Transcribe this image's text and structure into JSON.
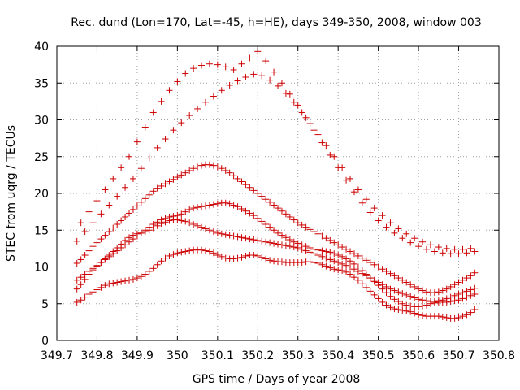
{
  "chart_data": {
    "type": "scatter",
    "title": "Rec. dund (Lon=170, Lat=-45, h=HE), days 349-350, 2008, window 003",
    "xlabel": "GPS time / Days of year 2008",
    "ylabel": "STEC from uqrg / TECUs",
    "xlim": [
      349.7,
      350.8
    ],
    "ylim": [
      0,
      40
    ],
    "xticks": [
      "349.7",
      "349.8",
      "349.9",
      "350",
      "350.1",
      "350.2",
      "350.3",
      "350.4",
      "350.5",
      "350.6",
      "350.7",
      "350.8"
    ],
    "yticks": [
      "0",
      "5",
      "10",
      "15",
      "20",
      "25",
      "30",
      "35",
      "40"
    ],
    "grid": true,
    "marker": "+",
    "colors": {
      "points": "#cc0000"
    },
    "series": [
      {
        "x": [
          349.75,
          349.76,
          349.77,
          349.78,
          349.79,
          349.8,
          349.81,
          349.82,
          349.83,
          349.84,
          349.85,
          349.86,
          349.87,
          349.88,
          349.89,
          349.9,
          349.91,
          349.92,
          349.93,
          349.94,
          349.95,
          349.96,
          349.97,
          349.98,
          349.99,
          350.0,
          350.01,
          350.02,
          350.03,
          350.04,
          350.05,
          350.06,
          350.07,
          350.08,
          350.09,
          350.1,
          350.11,
          350.12,
          350.13,
          350.14,
          350.15,
          350.16,
          350.17,
          350.18,
          350.19,
          350.2,
          350.21,
          350.22,
          350.23,
          350.24,
          350.25,
          350.26,
          350.27,
          350.28,
          350.29,
          350.3,
          350.31,
          350.32,
          350.33,
          350.34,
          350.35,
          350.36,
          350.37,
          350.38,
          350.39,
          350.4,
          350.41,
          350.42,
          350.43,
          350.44,
          350.45,
          350.46,
          350.47,
          350.48,
          350.49,
          350.5,
          350.51,
          350.52,
          350.53,
          350.54,
          350.55,
          350.56,
          350.57,
          350.58,
          350.59,
          350.6,
          350.61,
          350.62,
          350.63,
          350.64,
          350.65,
          350.66,
          350.67,
          350.68,
          350.69,
          350.7,
          350.71,
          350.72,
          350.73,
          350.74
        ],
        "y": [
          5.2,
          5.5,
          5.9,
          6.3,
          6.6,
          6.9,
          7.2,
          7.5,
          7.7,
          7.8,
          7.9,
          8.0,
          8.1,
          8.2,
          8.3,
          8.5,
          8.7,
          9.0,
          9.4,
          9.8,
          10.3,
          10.8,
          11.2,
          11.5,
          11.7,
          11.9,
          12.0,
          12.1,
          12.2,
          12.3,
          12.3,
          12.3,
          12.2,
          12.1,
          11.9,
          11.6,
          11.4,
          11.2,
          11.1,
          11.1,
          11.2,
          11.3,
          11.5,
          11.6,
          11.6,
          11.5,
          11.3,
          11.1,
          10.9,
          10.8,
          10.7,
          10.7,
          10.6,
          10.6,
          10.6,
          10.6,
          10.6,
          10.7,
          10.7,
          10.6,
          10.5,
          10.3,
          10.1,
          9.9,
          9.7,
          9.6,
          9.5,
          9.3,
          9.0,
          8.6,
          8.2,
          7.7,
          7.2,
          6.7,
          6.2,
          5.7,
          5.2,
          4.8,
          4.5,
          4.3,
          4.2,
          4.1,
          4.0,
          3.9,
          3.7,
          3.5,
          3.4,
          3.3,
          3.3,
          3.3,
          3.3,
          3.2,
          3.1,
          3.0,
          3.0,
          3.1,
          3.3,
          3.5,
          3.8,
          4.2
        ]
      },
      {
        "x": [
          349.75,
          349.76,
          349.77,
          349.78,
          349.79,
          349.8,
          349.81,
          349.82,
          349.83,
          349.84,
          349.85,
          349.86,
          349.87,
          349.88,
          349.89,
          349.9,
          349.91,
          349.92,
          349.93,
          349.94,
          349.95,
          349.96,
          349.97,
          349.98,
          349.99,
          350.0,
          350.01,
          350.02,
          350.03,
          350.04,
          350.05,
          350.06,
          350.07,
          350.08,
          350.09,
          350.1,
          350.11,
          350.12,
          350.13,
          350.14,
          350.15,
          350.16,
          350.17,
          350.18,
          350.19,
          350.2,
          350.21,
          350.22,
          350.23,
          350.24,
          350.25,
          350.26,
          350.27,
          350.28,
          350.29,
          350.3,
          350.31,
          350.32,
          350.33,
          350.34,
          350.35,
          350.36,
          350.37,
          350.38,
          350.39,
          350.4,
          350.41,
          350.42,
          350.43,
          350.44,
          350.45,
          350.46,
          350.47,
          350.48,
          350.49,
          350.5,
          350.51,
          350.52,
          350.53,
          350.54,
          350.55,
          350.56,
          350.57,
          350.58,
          350.59,
          350.6,
          350.61,
          350.62,
          350.63,
          350.64,
          350.65,
          350.66,
          350.67,
          350.68,
          350.69,
          350.7,
          350.71,
          350.72,
          350.73,
          350.74
        ],
        "y": [
          8.2,
          8.6,
          9.0,
          9.4,
          9.8,
          10.2,
          10.6,
          11.0,
          11.4,
          11.8,
          12.2,
          12.6,
          13.0,
          13.4,
          13.8,
          14.2,
          14.6,
          15.0,
          15.4,
          15.8,
          16.1,
          16.4,
          16.6,
          16.8,
          16.9,
          17.0,
          17.2,
          17.5,
          17.8,
          18.0,
          18.1,
          18.2,
          18.3,
          18.4,
          18.5,
          18.6,
          18.7,
          18.7,
          18.6,
          18.4,
          18.2,
          17.9,
          17.6,
          17.3,
          17.0,
          16.6,
          16.2,
          15.8,
          15.4,
          15.0,
          14.6,
          14.3,
          14.0,
          13.7,
          13.4,
          13.2,
          13.0,
          12.8,
          12.6,
          12.4,
          12.3,
          12.2,
          12.1,
          12.0,
          11.8,
          11.6,
          11.4,
          11.1,
          10.8,
          10.4,
          10.0,
          9.5,
          9.0,
          8.5,
          8.0,
          7.5,
          7.0,
          6.5,
          6.0,
          5.6,
          5.3,
          5.0,
          4.8,
          4.7,
          4.6,
          4.6,
          4.7,
          4.8,
          5.0,
          5.1,
          5.2,
          5.2,
          5.2,
          5.3,
          5.4,
          5.5,
          5.7,
          5.9,
          6.1,
          6.3
        ]
      },
      {
        "x": [
          349.75,
          349.76,
          349.77,
          349.78,
          349.79,
          349.8,
          349.81,
          349.82,
          349.83,
          349.84,
          349.85,
          349.86,
          349.87,
          349.88,
          349.89,
          349.9,
          349.91,
          349.92,
          349.93,
          349.94,
          349.95,
          349.96,
          349.97,
          349.98,
          349.99,
          350.0,
          350.01,
          350.02,
          350.03,
          350.04,
          350.05,
          350.06,
          350.07,
          350.08,
          350.09,
          350.1,
          350.11,
          350.12,
          350.13,
          350.14,
          350.15,
          350.16,
          350.17,
          350.18,
          350.19,
          350.2,
          350.21,
          350.22,
          350.23,
          350.24,
          350.25,
          350.26,
          350.27,
          350.28,
          350.29,
          350.3,
          350.31,
          350.32,
          350.33,
          350.34,
          350.35,
          350.36,
          350.37,
          350.38,
          350.39,
          350.4,
          350.41,
          350.42,
          350.43,
          350.44,
          350.45,
          350.46,
          350.47,
          350.48,
          350.49,
          350.5,
          350.51,
          350.52,
          350.53,
          350.54,
          350.55,
          350.56,
          350.57,
          350.58,
          350.59,
          350.6,
          350.61,
          350.62,
          350.63,
          350.64,
          350.65,
          350.66,
          350.67,
          350.68,
          350.69,
          350.7,
          350.71,
          350.72,
          350.73,
          350.74
        ],
        "y": [
          10.5,
          11.0,
          11.6,
          12.2,
          12.8,
          13.3,
          13.8,
          14.3,
          14.8,
          15.3,
          15.8,
          16.3,
          16.8,
          17.3,
          17.8,
          18.3,
          18.8,
          19.3,
          19.8,
          20.3,
          20.7,
          21.0,
          21.3,
          21.6,
          21.9,
          22.2,
          22.5,
          22.8,
          23.1,
          23.4,
          23.6,
          23.8,
          23.9,
          23.9,
          23.8,
          23.6,
          23.4,
          23.1,
          22.8,
          22.4,
          22.0,
          21.6,
          21.2,
          20.8,
          20.4,
          20.0,
          19.6,
          19.2,
          18.8,
          18.4,
          18.0,
          17.6,
          17.2,
          16.8,
          16.4,
          16.0,
          15.7,
          15.4,
          15.1,
          14.8,
          14.5,
          14.2,
          13.9,
          13.6,
          13.3,
          13.0,
          12.7,
          12.4,
          12.1,
          11.8,
          11.5,
          11.2,
          10.9,
          10.6,
          10.3,
          10.0,
          9.7,
          9.4,
          9.1,
          8.8,
          8.5,
          8.2,
          7.9,
          7.6,
          7.3,
          7.0,
          6.8,
          6.6,
          6.5,
          6.5,
          6.6,
          6.8,
          7.0,
          7.3,
          7.6,
          7.9,
          8.2,
          8.5,
          8.8,
          9.2
        ]
      },
      {
        "x": [
          349.75,
          349.77,
          349.79,
          349.81,
          349.83,
          349.85,
          349.87,
          349.89,
          349.91,
          349.93,
          349.95,
          349.97,
          349.99,
          350.01,
          350.03,
          350.05,
          350.07,
          350.09,
          350.11,
          350.13,
          350.15,
          350.17,
          350.19,
          350.21,
          350.23,
          350.25,
          350.27,
          350.29,
          350.31,
          350.33,
          350.35,
          350.37,
          350.39,
          350.41,
          350.43,
          350.45,
          350.47,
          350.49,
          350.51,
          350.53,
          350.55,
          350.57,
          350.59,
          350.61,
          350.63,
          350.65,
          350.67,
          350.69,
          350.71,
          350.73
        ],
        "y": [
          13.5,
          14.8,
          16.0,
          17.2,
          18.4,
          19.6,
          20.8,
          22.0,
          23.4,
          24.8,
          26.2,
          27.4,
          28.6,
          29.6,
          30.6,
          31.5,
          32.4,
          33.2,
          34.0,
          34.7,
          35.3,
          35.8,
          36.2,
          36.0,
          35.4,
          34.6,
          33.6,
          32.4,
          31.0,
          29.5,
          28.0,
          26.5,
          25.0,
          23.5,
          22.0,
          20.5,
          19.2,
          18.0,
          17.0,
          16.0,
          15.2,
          14.5,
          13.9,
          13.4,
          13.0,
          12.7,
          12.5,
          12.4,
          12.4,
          12.5
        ]
      },
      {
        "x": [
          349.76,
          349.78,
          349.8,
          349.82,
          349.84,
          349.86,
          349.88,
          349.9,
          349.92,
          349.94,
          349.96,
          349.98,
          350.0,
          350.02,
          350.04,
          350.06,
          350.08,
          350.1,
          350.12,
          350.14,
          350.16,
          350.18,
          350.2,
          350.22,
          350.24,
          350.26,
          350.28,
          350.3,
          350.32,
          350.34,
          350.36,
          350.38,
          350.4,
          350.42,
          350.44,
          350.46,
          350.48,
          350.5,
          350.52,
          350.54,
          350.56,
          350.58,
          350.6,
          350.62,
          350.64,
          350.66,
          350.68,
          350.7,
          350.72,
          350.74
        ],
        "y": [
          16.0,
          17.5,
          19.0,
          20.5,
          22.0,
          23.5,
          25.0,
          27.0,
          29.0,
          31.0,
          32.5,
          34.0,
          35.2,
          36.3,
          37.0,
          37.4,
          37.6,
          37.5,
          37.2,
          36.8,
          37.6,
          38.4,
          39.3,
          38.0,
          36.5,
          35.0,
          33.5,
          32.0,
          30.3,
          28.6,
          26.9,
          25.2,
          23.5,
          21.8,
          20.2,
          18.7,
          17.4,
          16.3,
          15.4,
          14.6,
          13.9,
          13.3,
          12.8,
          12.4,
          12.1,
          11.9,
          11.8,
          11.8,
          11.9,
          12.1
        ]
      },
      {
        "x": [
          349.75,
          349.76,
          349.77,
          349.78,
          349.79,
          349.8,
          349.81,
          349.82,
          349.83,
          349.84,
          349.85,
          349.86,
          349.87,
          349.88,
          349.89,
          349.9,
          349.91,
          349.92,
          349.93,
          349.94,
          349.95,
          349.96,
          349.97,
          349.98,
          349.99,
          350.0,
          350.01,
          350.02,
          350.03,
          350.04,
          350.05,
          350.06,
          350.07,
          350.08,
          350.09,
          350.1,
          350.11,
          350.12,
          350.13,
          350.14,
          350.15,
          350.16,
          350.17,
          350.18,
          350.19,
          350.2,
          350.21,
          350.22,
          350.23,
          350.24,
          350.25,
          350.26,
          350.27,
          350.28,
          350.29,
          350.3,
          350.31,
          350.32,
          350.33,
          350.34,
          350.35,
          350.36,
          350.37,
          350.38,
          350.39,
          350.4,
          350.41,
          350.42,
          350.43,
          350.44,
          350.45,
          350.46,
          350.47,
          350.48,
          350.49,
          350.5,
          350.51,
          350.52,
          350.53,
          350.54,
          350.55,
          350.56,
          350.57,
          350.58,
          350.59,
          350.6,
          350.61,
          350.62,
          350.63,
          350.64,
          350.65,
          350.66,
          350.67,
          350.68,
          350.69,
          350.7,
          350.71,
          350.72,
          350.73,
          350.74
        ],
        "y": [
          7.0,
          7.6,
          8.3,
          9.0,
          9.6,
          10.1,
          10.6,
          11.1,
          11.6,
          12.1,
          12.6,
          13.1,
          13.6,
          14.0,
          14.3,
          14.5,
          14.6,
          14.8,
          15.0,
          15.3,
          15.6,
          15.9,
          16.1,
          16.3,
          16.4,
          16.4,
          16.3,
          16.2,
          16.0,
          15.8,
          15.6,
          15.4,
          15.2,
          15.0,
          14.8,
          14.6,
          14.5,
          14.4,
          14.3,
          14.2,
          14.1,
          14.0,
          13.9,
          13.8,
          13.7,
          13.6,
          13.5,
          13.4,
          13.3,
          13.2,
          13.1,
          13.0,
          12.9,
          12.8,
          12.7,
          12.6,
          12.4,
          12.2,
          12.0,
          11.8,
          11.6,
          11.4,
          11.2,
          11.0,
          10.8,
          10.6,
          10.4,
          10.2,
          10.0,
          9.7,
          9.4,
          9.1,
          8.8,
          8.5,
          8.2,
          7.9,
          7.6,
          7.3,
          7.0,
          6.8,
          6.6,
          6.4,
          6.2,
          6.0,
          5.8,
          5.6,
          5.5,
          5.4,
          5.3,
          5.3,
          5.4,
          5.5,
          5.7,
          5.9,
          6.1,
          6.3,
          6.5,
          6.7,
          6.9,
          7.1
        ]
      }
    ]
  }
}
